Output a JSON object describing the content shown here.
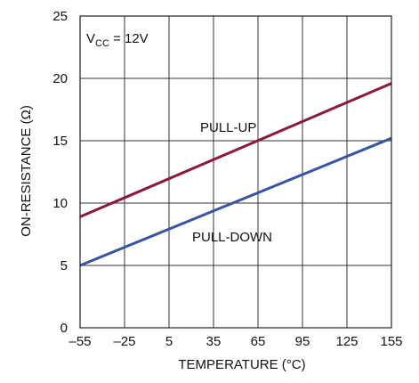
{
  "chart_data": {
    "type": "line",
    "xlabel": "TEMPERATURE (°C)",
    "ylabel": "ON-RESISTANCE (Ω)",
    "xlim": [
      -55,
      155
    ],
    "ylim": [
      0,
      25
    ],
    "x_ticks": [
      -55,
      -25,
      5,
      35,
      65,
      95,
      125,
      155
    ],
    "x_tick_labels": [
      "–55",
      "–25",
      "5",
      "35",
      "65",
      "95",
      "125",
      "155"
    ],
    "y_ticks": [
      0,
      5,
      10,
      15,
      20,
      25
    ],
    "y_tick_labels": [
      "0",
      "5",
      "10",
      "15",
      "20",
      "25"
    ],
    "grid": true,
    "condition_label": {
      "prefix": "V",
      "subscript": "CC",
      "suffix": " = 12V"
    },
    "series": [
      {
        "name": "PULL-UP",
        "color": "#8b1a3a",
        "x": [
          -55,
          155
        ],
        "y": [
          8.9,
          19.6
        ]
      },
      {
        "name": "PULL-DOWN",
        "color": "#3a55a0",
        "x": [
          -55,
          155
        ],
        "y": [
          5.0,
          15.2
        ]
      }
    ]
  }
}
